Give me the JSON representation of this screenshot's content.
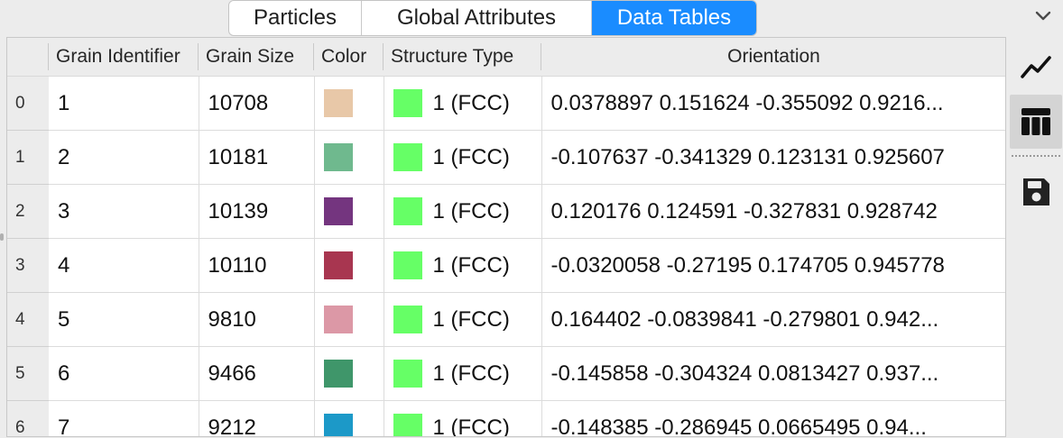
{
  "tabs": [
    {
      "label": "Particles",
      "active": false
    },
    {
      "label": "Global Attributes",
      "active": false
    },
    {
      "label": "Data Tables",
      "active": true
    }
  ],
  "colors": {
    "accent": "#1a8cff",
    "fcc_green": "#66ff66"
  },
  "table": {
    "columns": [
      "Grain Identifier",
      "Grain Size",
      "Color",
      "Structure Type",
      "Orientation"
    ],
    "rows": [
      {
        "index": "0",
        "id": "1",
        "size": "10708",
        "color": "#e8c8a8",
        "structure": "1 (FCC)",
        "structure_color": "#66ff66",
        "orientation": "0.0378897 0.151624 -0.355092 0.9216..."
      },
      {
        "index": "1",
        "id": "2",
        "size": "10181",
        "color": "#6fb98e",
        "structure": "1 (FCC)",
        "structure_color": "#66ff66",
        "orientation": "-0.107637 -0.341329 0.123131 0.925607"
      },
      {
        "index": "2",
        "id": "3",
        "size": "10139",
        "color": "#74357f",
        "structure": "1 (FCC)",
        "structure_color": "#66ff66",
        "orientation": "0.120176 0.124591 -0.327831 0.928742"
      },
      {
        "index": "3",
        "id": "4",
        "size": "10110",
        "color": "#a83650",
        "structure": "1 (FCC)",
        "structure_color": "#66ff66",
        "orientation": "-0.0320058 -0.27195 0.174705 0.945778"
      },
      {
        "index": "4",
        "id": "5",
        "size": "9810",
        "color": "#dc98a6",
        "structure": "1 (FCC)",
        "structure_color": "#66ff66",
        "orientation": "0.164402 -0.0839841 -0.279801 0.942..."
      },
      {
        "index": "5",
        "id": "6",
        "size": "9466",
        "color": "#3f966a",
        "structure": "1 (FCC)",
        "structure_color": "#66ff66",
        "orientation": "-0.145858 -0.304324 0.0813427 0.937..."
      },
      {
        "index": "6",
        "id": "7",
        "size": "9212",
        "color": "#1c99c8",
        "structure": "1 (FCC)",
        "structure_color": "#66ff66",
        "orientation": "-0.148385 -0.286945 0.0665495 0.94..."
      }
    ]
  },
  "tools": [
    {
      "icon": "line-chart-icon",
      "active": false
    },
    {
      "icon": "table-icon",
      "active": true
    },
    {
      "icon": "save-icon",
      "active": false
    }
  ]
}
